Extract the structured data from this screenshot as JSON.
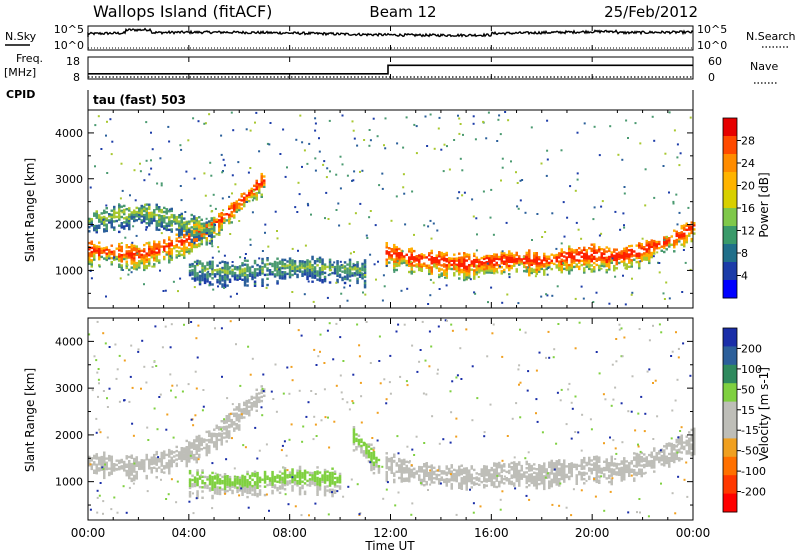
{
  "header": {
    "site": "Wallops Island (fitACF)",
    "beam": "Beam 12",
    "date": "25/Feb/2012"
  },
  "panels": {
    "noise": {
      "left_label": "N.Sky",
      "right_label": "N.Search",
      "ticks": [
        "10^5",
        "10^0"
      ]
    },
    "freq": {
      "left_label": "Freq.",
      "left_unit": "[MHz]",
      "left_ticks": [
        "18",
        "8"
      ],
      "right_label": "Nave",
      "right_ticks": [
        "60",
        "0"
      ],
      "cpid_label": "CPID",
      "cpid_value": "tau (fast) 503"
    },
    "power": {
      "ylabel": "Slant Range [km]",
      "colorbar_label": "Power [dB]",
      "colorbar_ticks": [
        "28",
        "24",
        "20",
        "16",
        "12",
        "8",
        "4"
      ],
      "colorbar_colors": [
        "#e60000",
        "#ff4a00",
        "#ff8c00",
        "#ffb400",
        "#d8d000",
        "#7fc84a",
        "#3a9a6a",
        "#206f8a",
        "#1c3ca8",
        "#0000ff"
      ]
    },
    "velocity": {
      "ylabel": "Slant Range [km]",
      "colorbar_label": "Velocity [m s-1]",
      "colorbar_ticks": [
        "200",
        "100",
        "50",
        "15",
        "-15",
        "-50",
        "-100",
        "-200"
      ],
      "colorbar_colors": [
        "#1a2ea8",
        "#2c5f9a",
        "#2f8a5e",
        "#7fd040",
        "#bebeb8",
        "#bebeb8",
        "#f0a020",
        "#ff7000",
        "#ff3800",
        "#ff0000"
      ]
    }
  },
  "xaxis": {
    "label": "Time UT",
    "ticks": [
      "00:00",
      "04:00",
      "08:00",
      "12:00",
      "16:00",
      "20:00",
      "00:00"
    ]
  },
  "chart_data": {
    "type": "heatmap",
    "x": {
      "range_hours": [
        0,
        24
      ],
      "tick_step_hours": 4
    },
    "y": {
      "range_km": [
        180,
        4500
      ],
      "ticks": [
        1000,
        2000,
        3000,
        4000
      ]
    },
    "freq_series": [
      {
        "name": "Freq.",
        "x_hours": [
          0,
          11.9,
          11.9,
          24
        ],
        "y": [
          10.5,
          10.5,
          15.5,
          15.5
        ]
      }
    ],
    "power_bands": [
      {
        "x_hours": [
          0,
          1,
          2,
          3,
          4,
          5,
          6,
          7
        ],
        "y_km": [
          1450,
          1400,
          1350,
          1500,
          1700,
          2000,
          2500,
          3000
        ],
        "dB": 26
      },
      {
        "x_hours": [
          11.8,
          13,
          14,
          15,
          16,
          17,
          18,
          19,
          20,
          21,
          22,
          23,
          24
        ],
        "y_km": [
          1400,
          1250,
          1200,
          1150,
          1200,
          1250,
          1200,
          1300,
          1350,
          1300,
          1450,
          1650,
          1950
        ],
        "dB": 28
      },
      {
        "x_hours": [
          0,
          1,
          2,
          3,
          4,
          5
        ],
        "y_km": [
          2100,
          2200,
          2300,
          2200,
          2000,
          1950
        ],
        "dB": 14
      },
      {
        "x_hours": [
          4,
          5,
          6,
          7,
          8,
          9,
          10,
          11
        ],
        "y_km": [
          1050,
          1000,
          1000,
          1050,
          1100,
          1100,
          1050,
          1000
        ],
        "dB": 12
      }
    ],
    "velocity_bands": [
      {
        "x_hours": [
          0,
          1,
          2,
          3,
          4,
          5,
          6,
          7
        ],
        "y_km": [
          1450,
          1400,
          1350,
          1500,
          1700,
          2000,
          2500,
          3000
        ],
        "ms": 0
      },
      {
        "x_hours": [
          11.8,
          13,
          14,
          15,
          16,
          17,
          18,
          19,
          20,
          21,
          22,
          23,
          24
        ],
        "y_km": [
          1400,
          1250,
          1200,
          1150,
          1200,
          1250,
          1200,
          1300,
          1350,
          1300,
          1450,
          1650,
          1950
        ],
        "ms": 0
      },
      {
        "x_hours": [
          10.5,
          11.0,
          11.5
        ],
        "y_km": [
          2000,
          1700,
          1400
        ],
        "ms": 40
      },
      {
        "x_hours": [
          4,
          5,
          6,
          7,
          8,
          9,
          10
        ],
        "y_km": [
          1050,
          1000,
          1000,
          1050,
          1100,
          1100,
          1050
        ],
        "ms": 40
      }
    ]
  }
}
